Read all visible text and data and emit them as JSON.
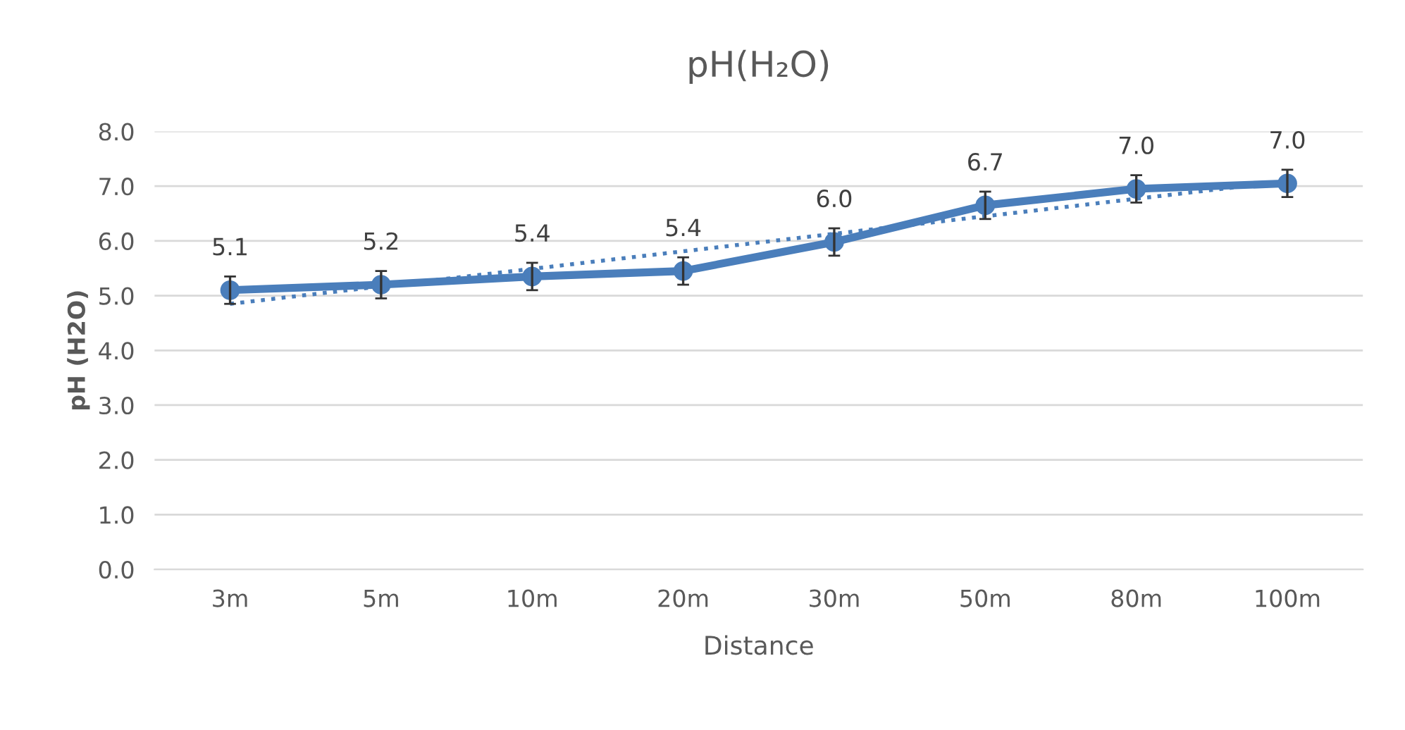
{
  "chart_data": {
    "type": "line",
    "title": "pH(H₂O)",
    "xlabel": "Distance",
    "ylabel": "pH (H2O)",
    "categories": [
      "3m",
      "5m",
      "10m",
      "20m",
      "30m",
      "50m",
      "80m",
      "100m"
    ],
    "series": [
      {
        "color": "#4a7ebb",
        "values": [
          5.1,
          5.2,
          5.35,
          5.45,
          5.98,
          6.65,
          6.95,
          7.05
        ],
        "value_labels": [
          "5.1",
          "5.2",
          "5.4",
          "5.4",
          "6.0",
          "6.7",
          "7.0",
          "7.0"
        ],
        "errors": [
          0.25,
          0.25,
          0.25,
          0.25,
          0.25,
          0.25,
          0.25,
          0.25
        ],
        "marker": "circle",
        "line_style": "solid"
      },
      {
        "type": "line",
        "color": "#4a7ebb",
        "values": [
          4.85,
          5.17,
          5.49,
          5.81,
          6.13,
          6.45,
          6.77,
          7.09
        ],
        "marker": "none",
        "line_style": "dotted"
      }
    ],
    "ylim": [
      0,
      8
    ],
    "yticks": [
      {
        "value": 0,
        "label": "0.0"
      },
      {
        "value": 1,
        "label": "1.0"
      },
      {
        "value": 2,
        "label": "2.0"
      },
      {
        "value": 3,
        "label": "3.0"
      },
      {
        "value": 4,
        "label": "4.0"
      },
      {
        "value": 5,
        "label": "5.0"
      },
      {
        "value": 6,
        "label": "6.0"
      },
      {
        "value": 7,
        "label": "7.0"
      },
      {
        "value": 8,
        "label": "8.0"
      }
    ],
    "grid": "y"
  }
}
